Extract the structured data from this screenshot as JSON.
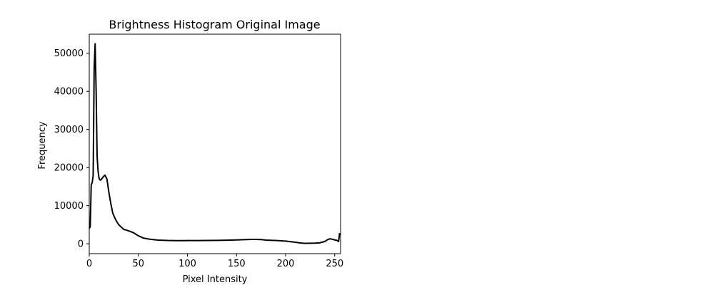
{
  "chart_data": {
    "type": "line",
    "title": "Brightness Histogram Original Image",
    "xlabel": "Pixel Intensity",
    "ylabel": "Frequency",
    "xlim": [
      0,
      256
    ],
    "ylim": [
      -2600,
      55000
    ],
    "grid": false,
    "line_color": "#000000",
    "x_ticks": [
      0,
      50,
      100,
      150,
      200,
      250
    ],
    "y_ticks": [
      0,
      10000,
      20000,
      30000,
      40000,
      50000
    ],
    "series": [
      {
        "x": [
          0,
          1,
          2,
          3,
          4,
          5,
          6,
          7,
          8,
          9,
          10,
          11,
          12,
          14,
          16,
          18,
          20,
          22,
          24,
          26,
          28,
          30,
          35,
          40,
          45,
          50,
          55,
          60,
          65,
          70,
          80,
          90,
          100,
          110,
          120,
          130,
          140,
          150,
          160,
          165,
          170,
          175,
          180,
          190,
          200,
          210,
          215,
          220,
          230,
          235,
          240,
          243,
          245,
          248,
          250,
          252,
          254,
          255
        ],
        "y": [
          4000,
          4500,
          15500,
          16000,
          18000,
          46000,
          52500,
          40000,
          23000,
          19000,
          17200,
          16700,
          16800,
          17500,
          18000,
          17000,
          13500,
          10500,
          8000,
          6800,
          5800,
          5000,
          3800,
          3400,
          2900,
          2100,
          1500,
          1250,
          1100,
          950,
          850,
          820,
          830,
          840,
          860,
          880,
          920,
          1000,
          1100,
          1150,
          1150,
          1100,
          950,
          850,
          700,
          400,
          200,
          100,
          150,
          250,
          600,
          1100,
          1300,
          1150,
          1000,
          900,
          600,
          2800
        ]
      }
    ]
  }
}
